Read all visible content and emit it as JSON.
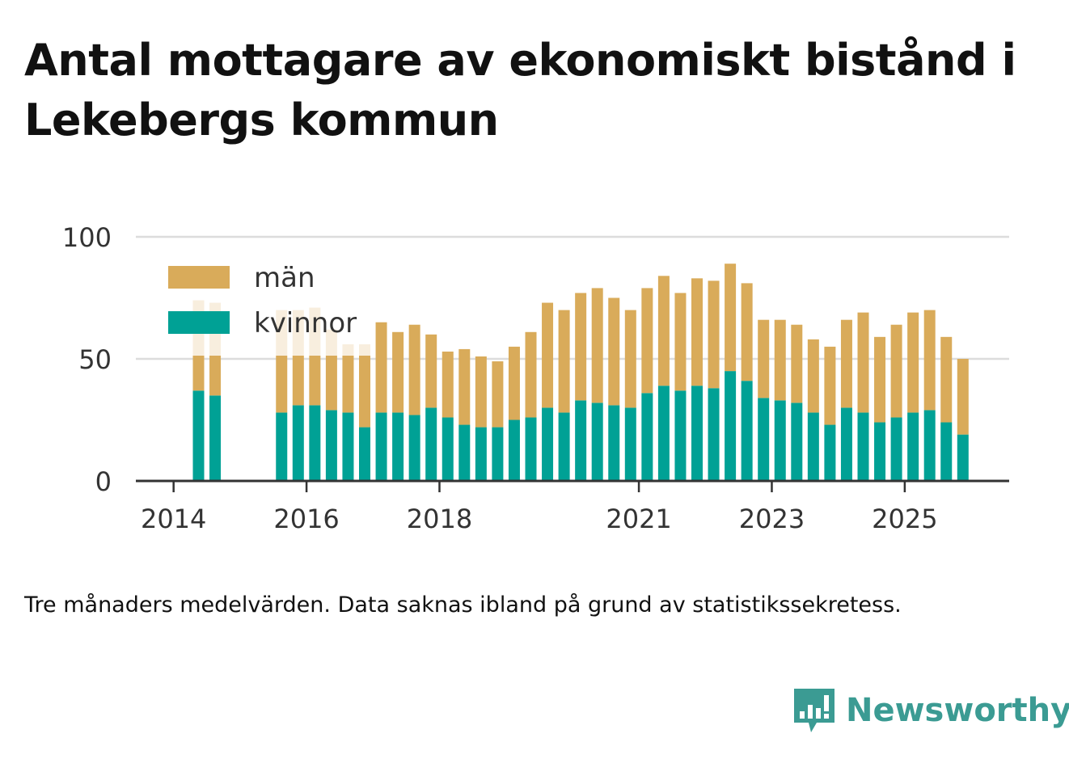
{
  "title": "Antal mottagare av ekonomiskt bistånd i Lekebergs kommun",
  "note": "Tre månaders medelvärden. Data saknas ibland på grund av statistikssekretess.",
  "brand": "Newsworthy",
  "colors": {
    "men": "#d9ab5a",
    "women": "#00a195",
    "grid": "#dcdcdc",
    "axis": "#333333",
    "brand": "#3b9b93"
  },
  "chart_data": {
    "type": "bar",
    "stacked": true,
    "ylim": [
      0,
      100
    ],
    "yticks": [
      0,
      50,
      100
    ],
    "xtick_labels": [
      "2014",
      "2016",
      "2018",
      "2021",
      "2023",
      "2025"
    ],
    "legend": [
      "män",
      "kvinnor"
    ],
    "legend_position": "top-left",
    "grid": true,
    "categories": [
      "2014 Q2",
      "2014 Q3",
      "2014 Q4",
      "2015 Q1",
      "2015 Q2",
      "2015 Q3",
      "2015 Q4",
      "2016 Q1",
      "2016 Q2",
      "2016 Q3",
      "2016 Q4",
      "2017 Q1",
      "2017 Q2",
      "2017 Q3",
      "2017 Q4",
      "2018 Q1",
      "2018 Q2",
      "2018 Q3",
      "2018 Q4",
      "2019 Q1",
      "2019 Q2",
      "2019 Q3",
      "2019 Q4",
      "2020 Q1",
      "2020 Q2",
      "2020 Q3",
      "2020 Q4",
      "2021 Q1",
      "2021 Q2",
      "2021 Q3",
      "2021 Q4",
      "2022 Q1",
      "2022 Q2",
      "2022 Q3",
      "2022 Q4",
      "2023 Q1",
      "2023 Q2",
      "2023 Q3",
      "2023 Q4",
      "2024 Q1",
      "2024 Q2",
      "2024 Q3",
      "2024 Q4",
      "2025 Q1",
      "2025 Q2",
      "2025 Q3",
      "2025 Q4"
    ],
    "series": [
      {
        "name": "kvinnor",
        "values": [
          37,
          35,
          null,
          null,
          null,
          28,
          31,
          31,
          29,
          28,
          22,
          28,
          28,
          27,
          30,
          26,
          23,
          22,
          22,
          25,
          26,
          30,
          28,
          33,
          32,
          31,
          30,
          36,
          39,
          37,
          39,
          38,
          45,
          41,
          34,
          33,
          32,
          28,
          23,
          30,
          28,
          24,
          26,
          28,
          29,
          24,
          19
        ]
      },
      {
        "name": "män",
        "values": [
          37,
          38,
          null,
          null,
          null,
          42,
          39,
          40,
          33,
          28,
          34,
          37,
          33,
          37,
          30,
          27,
          31,
          29,
          27,
          30,
          35,
          43,
          42,
          44,
          47,
          44,
          40,
          43,
          45,
          40,
          44,
          44,
          44,
          40,
          32,
          33,
          32,
          30,
          32,
          36,
          41,
          35,
          38,
          41,
          41,
          35,
          31
        ]
      }
    ]
  }
}
